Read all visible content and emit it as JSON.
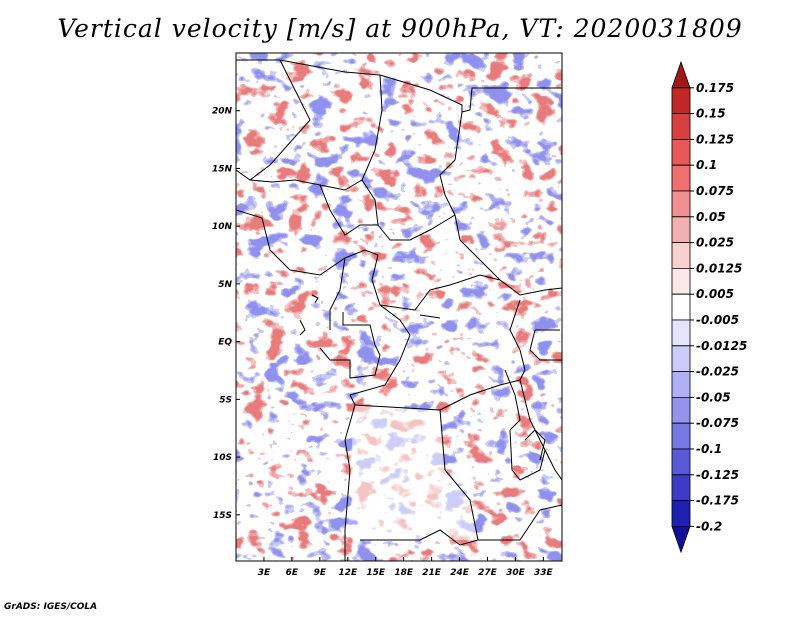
{
  "chart_data": {
    "type": "heatmap",
    "title": "Vertical velocity [m/s] at 900hPa, VT: 2020031809",
    "variable": "Vertical velocity",
    "units": "m/s",
    "level": "900hPa",
    "valid_time": "2020031809",
    "xlim": [
      0,
      35
    ],
    "ylim": [
      -19,
      25
    ],
    "x_ticks": [
      {
        "value": 3,
        "label": "3E"
      },
      {
        "value": 6,
        "label": "6E"
      },
      {
        "value": 9,
        "label": "9E"
      },
      {
        "value": 12,
        "label": "12E"
      },
      {
        "value": 15,
        "label": "15E"
      },
      {
        "value": 18,
        "label": "18E"
      },
      {
        "value": 21,
        "label": "21E"
      },
      {
        "value": 24,
        "label": "24E"
      },
      {
        "value": 27,
        "label": "27E"
      },
      {
        "value": 30,
        "label": "30E"
      },
      {
        "value": 33,
        "label": "33E"
      }
    ],
    "y_ticks": [
      {
        "value": 20,
        "label": "20N"
      },
      {
        "value": 15,
        "label": "15N"
      },
      {
        "value": 10,
        "label": "10N"
      },
      {
        "value": 5,
        "label": "5N"
      },
      {
        "value": 0,
        "label": "EQ"
      },
      {
        "value": -5,
        "label": "5S"
      },
      {
        "value": -10,
        "label": "10S"
      },
      {
        "value": -15,
        "label": "15S"
      }
    ],
    "colorbar": {
      "levels": [
        "0.175",
        "0.15",
        "0.125",
        "0.1",
        "0.075",
        "0.05",
        "0.025",
        "0.0125",
        "0.005",
        "-0.005",
        "-0.0125",
        "-0.025",
        "-0.05",
        "-0.075",
        "-0.1",
        "-0.125",
        "-0.175",
        "-0.2"
      ],
      "colors": [
        "#a01818",
        "#c02828",
        "#d84040",
        "#e85858",
        "#f07070",
        "#f09090",
        "#f4b0b0",
        "#f8d0d0",
        "#fbe8e8",
        "#ffffff",
        "#e4e4fc",
        "#ccccfa",
        "#b0b0f6",
        "#9494ee",
        "#7878e4",
        "#5a5ad8",
        "#3c3cc8",
        "#2020b0",
        "#10109a"
      ]
    }
  },
  "footer": {
    "credit": "GrADS: IGES/COLA"
  }
}
